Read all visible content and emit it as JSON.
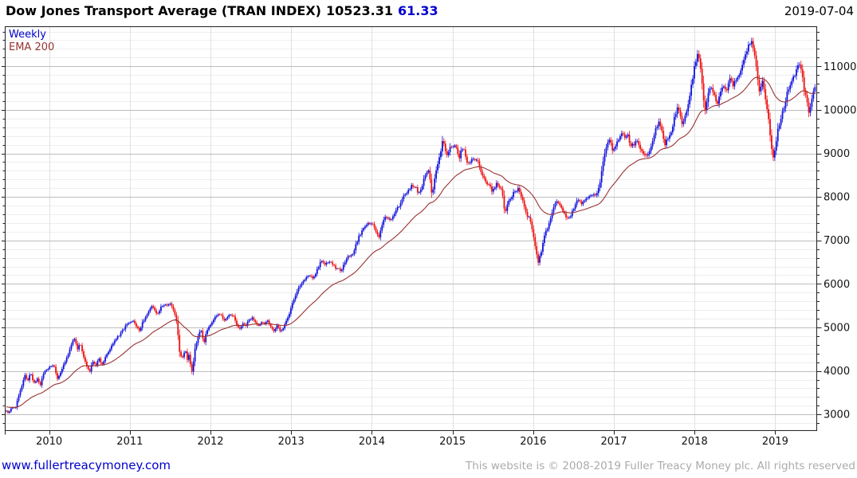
{
  "header": {
    "title": "Dow Jones Transport Average (TRAN INDEX)",
    "last_price": "10523.31",
    "change": "61.33",
    "date": "2019-07-04"
  },
  "legend": {
    "frequency": "Weekly",
    "overlay": "EMA 200"
  },
  "footer": {
    "website": "www.fullertreacymoney.com",
    "copyright": "This website is © 2008-2019 Fuller Treacy Money plc. All rights reserved"
  },
  "colors": {
    "up": "#1212dd",
    "down": "#ee1111",
    "ema": "#993333",
    "accent_blue": "#0000cc",
    "grid_minor": "#eeeeee",
    "grid_major": "#bdbdbd",
    "grid_vertical": "#e0e0e0",
    "axis": "#222222",
    "tick_label": "#111111"
  },
  "chart_data": {
    "type": "candlestick",
    "title": "Dow Jones Transport Average (TRAN INDEX)",
    "frequency": "Weekly",
    "overlay": "EMA 200",
    "last_close": 10523.31,
    "weekly_change": 61.33,
    "as_of": "2019-07-04",
    "xlim": [
      2009.45,
      2019.52
    ],
    "ylim": [
      2620,
      11920
    ],
    "yticks": [
      3000,
      4000,
      5000,
      6000,
      7000,
      8000,
      9000,
      10000,
      11000
    ],
    "y_minor_step": 200,
    "xticks": [
      2010,
      2011,
      2012,
      2013,
      2014,
      2015,
      2016,
      2017,
      2018,
      2019
    ],
    "ema_period_weeks": 40,
    "anchors": [
      [
        2009.47,
        3080
      ],
      [
        2009.5,
        3030
      ],
      [
        2009.54,
        3180
      ],
      [
        2009.58,
        3120
      ],
      [
        2009.62,
        3420
      ],
      [
        2009.66,
        3650
      ],
      [
        2009.7,
        3920
      ],
      [
        2009.73,
        3750
      ],
      [
        2009.77,
        3980
      ],
      [
        2009.81,
        3700
      ],
      [
        2009.85,
        3820
      ],
      [
        2009.89,
        3660
      ],
      [
        2009.93,
        3950
      ],
      [
        2009.98,
        4050
      ],
      [
        2010.02,
        4120
      ],
      [
        2010.06,
        4150
      ],
      [
        2010.1,
        3820
      ],
      [
        2010.14,
        3950
      ],
      [
        2010.19,
        4180
      ],
      [
        2010.23,
        4350
      ],
      [
        2010.27,
        4600
      ],
      [
        2010.31,
        4750
      ],
      [
        2010.35,
        4500
      ],
      [
        2010.38,
        4650
      ],
      [
        2010.42,
        4380
      ],
      [
        2010.46,
        4150
      ],
      [
        2010.5,
        3980
      ],
      [
        2010.54,
        4220
      ],
      [
        2010.58,
        4120
      ],
      [
        2010.62,
        4300
      ],
      [
        2010.65,
        4100
      ],
      [
        2010.69,
        4280
      ],
      [
        2010.73,
        4420
      ],
      [
        2010.77,
        4560
      ],
      [
        2010.81,
        4700
      ],
      [
        2010.85,
        4780
      ],
      [
        2010.88,
        4850
      ],
      [
        2010.92,
        4950
      ],
      [
        2010.96,
        5080
      ],
      [
        2011.0,
        5100
      ],
      [
        2011.04,
        5170
      ],
      [
        2011.08,
        5020
      ],
      [
        2011.12,
        4920
      ],
      [
        2011.15,
        5080
      ],
      [
        2011.19,
        5230
      ],
      [
        2011.23,
        5330
      ],
      [
        2011.27,
        5480
      ],
      [
        2011.31,
        5400
      ],
      [
        2011.35,
        5300
      ],
      [
        2011.38,
        5480
      ],
      [
        2011.42,
        5530
      ],
      [
        2011.46,
        5480
      ],
      [
        2011.5,
        5560
      ],
      [
        2011.54,
        5380
      ],
      [
        2011.58,
        5150
      ],
      [
        2011.6,
        4800
      ],
      [
        2011.62,
        4380
      ],
      [
        2011.65,
        4300
      ],
      [
        2011.69,
        4480
      ],
      [
        2011.71,
        4250
      ],
      [
        2011.73,
        4380
      ],
      [
        2011.75,
        4180
      ],
      [
        2011.77,
        4000
      ],
      [
        2011.79,
        4250
      ],
      [
        2011.81,
        4550
      ],
      [
        2011.85,
        4800
      ],
      [
        2011.88,
        4950
      ],
      [
        2011.9,
        4780
      ],
      [
        2011.92,
        4650
      ],
      [
        2011.94,
        4850
      ],
      [
        2011.96,
        4920
      ],
      [
        2011.98,
        5020
      ],
      [
        2012.02,
        5120
      ],
      [
        2012.06,
        5250
      ],
      [
        2012.1,
        5320
      ],
      [
        2012.13,
        5280
      ],
      [
        2012.17,
        5180
      ],
      [
        2012.21,
        5240
      ],
      [
        2012.25,
        5300
      ],
      [
        2012.29,
        5230
      ],
      [
        2012.33,
        5060
      ],
      [
        2012.37,
        4960
      ],
      [
        2012.4,
        5120
      ],
      [
        2012.44,
        5040
      ],
      [
        2012.48,
        5180
      ],
      [
        2012.52,
        5240
      ],
      [
        2012.56,
        5120
      ],
      [
        2012.6,
        5040
      ],
      [
        2012.63,
        5120
      ],
      [
        2012.67,
        5080
      ],
      [
        2012.71,
        5150
      ],
      [
        2012.75,
        5020
      ],
      [
        2012.79,
        4900
      ],
      [
        2012.83,
        5050
      ],
      [
        2012.87,
        4880
      ],
      [
        2012.9,
        5000
      ],
      [
        2012.94,
        5150
      ],
      [
        2012.98,
        5330
      ],
      [
        2013.02,
        5600
      ],
      [
        2013.06,
        5750
      ],
      [
        2013.1,
        5950
      ],
      [
        2013.15,
        6050
      ],
      [
        2013.19,
        6150
      ],
      [
        2013.23,
        6180
      ],
      [
        2013.27,
        6120
      ],
      [
        2013.31,
        6280
      ],
      [
        2013.35,
        6450
      ],
      [
        2013.38,
        6550
      ],
      [
        2013.42,
        6420
      ],
      [
        2013.46,
        6520
      ],
      [
        2013.5,
        6480
      ],
      [
        2013.54,
        6380
      ],
      [
        2013.58,
        6350
      ],
      [
        2013.62,
        6280
      ],
      [
        2013.65,
        6450
      ],
      [
        2013.69,
        6600
      ],
      [
        2013.73,
        6650
      ],
      [
        2013.77,
        6720
      ],
      [
        2013.81,
        6950
      ],
      [
        2013.85,
        7120
      ],
      [
        2013.88,
        7250
      ],
      [
        2013.92,
        7320
      ],
      [
        2013.96,
        7400
      ],
      [
        2014.0,
        7380
      ],
      [
        2014.04,
        7280
      ],
      [
        2014.08,
        7050
      ],
      [
        2014.12,
        7300
      ],
      [
        2014.15,
        7480
      ],
      [
        2014.19,
        7550
      ],
      [
        2014.23,
        7480
      ],
      [
        2014.27,
        7620
      ],
      [
        2014.31,
        7700
      ],
      [
        2014.35,
        7850
      ],
      [
        2014.38,
        7980
      ],
      [
        2014.42,
        8050
      ],
      [
        2014.46,
        8150
      ],
      [
        2014.5,
        8280
      ],
      [
        2014.54,
        8230
      ],
      [
        2014.58,
        8080
      ],
      [
        2014.62,
        8250
      ],
      [
        2014.65,
        8450
      ],
      [
        2014.69,
        8620
      ],
      [
        2014.71,
        8550
      ],
      [
        2014.73,
        8250
      ],
      [
        2014.75,
        7980
      ],
      [
        2014.77,
        8350
      ],
      [
        2014.81,
        8700
      ],
      [
        2014.85,
        9050
      ],
      [
        2014.88,
        9280
      ],
      [
        2014.9,
        9250
      ],
      [
        2014.92,
        8950
      ],
      [
        2014.96,
        9100
      ],
      [
        2015.0,
        9180
      ],
      [
        2015.04,
        9150
      ],
      [
        2015.08,
        8880
      ],
      [
        2015.12,
        9120
      ],
      [
        2015.15,
        9050
      ],
      [
        2015.19,
        8750
      ],
      [
        2015.23,
        8820
      ],
      [
        2015.27,
        8880
      ],
      [
        2015.31,
        8820
      ],
      [
        2015.35,
        8550
      ],
      [
        2015.38,
        8480
      ],
      [
        2015.42,
        8350
      ],
      [
        2015.46,
        8220
      ],
      [
        2015.5,
        8120
      ],
      [
        2015.54,
        8320
      ],
      [
        2015.58,
        8250
      ],
      [
        2015.62,
        8080
      ],
      [
        2015.65,
        7620
      ],
      [
        2015.69,
        7850
      ],
      [
        2015.73,
        8000
      ],
      [
        2015.77,
        8150
      ],
      [
        2015.81,
        8180
      ],
      [
        2015.85,
        8050
      ],
      [
        2015.88,
        7850
      ],
      [
        2015.92,
        7580
      ],
      [
        2015.96,
        7480
      ],
      [
        2016.0,
        7100
      ],
      [
        2016.04,
        6700
      ],
      [
        2016.06,
        6480
      ],
      [
        2016.1,
        6750
      ],
      [
        2016.13,
        7050
      ],
      [
        2016.17,
        7250
      ],
      [
        2016.21,
        7480
      ],
      [
        2016.25,
        7750
      ],
      [
        2016.29,
        7880
      ],
      [
        2016.33,
        7780
      ],
      [
        2016.37,
        7650
      ],
      [
        2016.4,
        7580
      ],
      [
        2016.44,
        7480
      ],
      [
        2016.48,
        7650
      ],
      [
        2016.52,
        7820
      ],
      [
        2016.56,
        7950
      ],
      [
        2016.6,
        7850
      ],
      [
        2016.63,
        7880
      ],
      [
        2016.67,
        7950
      ],
      [
        2016.71,
        8020
      ],
      [
        2016.75,
        8100
      ],
      [
        2016.79,
        8050
      ],
      [
        2016.83,
        8350
      ],
      [
        2016.87,
        8850
      ],
      [
        2016.9,
        9150
      ],
      [
        2016.94,
        9350
      ],
      [
        2016.98,
        9100
      ],
      [
        2017.02,
        9180
      ],
      [
        2017.06,
        9300
      ],
      [
        2017.1,
        9450
      ],
      [
        2017.13,
        9380
      ],
      [
        2017.17,
        9420
      ],
      [
        2017.21,
        9150
      ],
      [
        2017.25,
        9220
      ],
      [
        2017.29,
        9300
      ],
      [
        2017.33,
        9120
      ],
      [
        2017.37,
        8980
      ],
      [
        2017.4,
        8900
      ],
      [
        2017.44,
        9050
      ],
      [
        2017.48,
        9250
      ],
      [
        2017.52,
        9550
      ],
      [
        2017.56,
        9720
      ],
      [
        2017.6,
        9450
      ],
      [
        2017.63,
        9200
      ],
      [
        2017.67,
        9350
      ],
      [
        2017.71,
        9520
      ],
      [
        2017.75,
        9800
      ],
      [
        2017.79,
        10050
      ],
      [
        2017.83,
        9850
      ],
      [
        2017.85,
        9580
      ],
      [
        2017.88,
        9850
      ],
      [
        2017.92,
        10120
      ],
      [
        2017.96,
        10550
      ],
      [
        2018.0,
        11000
      ],
      [
        2018.04,
        11350
      ],
      [
        2018.07,
        11050
      ],
      [
        2018.1,
        10450
      ],
      [
        2018.13,
        9950
      ],
      [
        2018.17,
        10350
      ],
      [
        2018.21,
        10550
      ],
      [
        2018.25,
        10300
      ],
      [
        2018.28,
        10120
      ],
      [
        2018.32,
        10380
      ],
      [
        2018.36,
        10550
      ],
      [
        2018.4,
        10420
      ],
      [
        2018.44,
        10750
      ],
      [
        2018.48,
        10580
      ],
      [
        2018.52,
        10650
      ],
      [
        2018.56,
        10880
      ],
      [
        2018.6,
        11080
      ],
      [
        2018.63,
        11250
      ],
      [
        2018.67,
        11450
      ],
      [
        2018.7,
        11570
      ],
      [
        2018.73,
        11420
      ],
      [
        2018.76,
        11120
      ],
      [
        2018.79,
        10650
      ],
      [
        2018.81,
        10380
      ],
      [
        2018.84,
        10700
      ],
      [
        2018.87,
        10380
      ],
      [
        2018.9,
        10050
      ],
      [
        2018.93,
        9550
      ],
      [
        2018.96,
        9080
      ],
      [
        2018.98,
        8820
      ],
      [
        2019.01,
        9250
      ],
      [
        2019.04,
        9600
      ],
      [
        2019.08,
        9900
      ],
      [
        2019.12,
        10150
      ],
      [
        2019.15,
        10380
      ],
      [
        2019.19,
        10550
      ],
      [
        2019.23,
        10750
      ],
      [
        2019.27,
        10950
      ],
      [
        2019.3,
        11020
      ],
      [
        2019.33,
        10820
      ],
      [
        2019.36,
        10480
      ],
      [
        2019.4,
        10120
      ],
      [
        2019.42,
        9850
      ],
      [
        2019.44,
        10080
      ],
      [
        2019.46,
        10280
      ],
      [
        2019.48,
        10450
      ],
      [
        2019.505,
        10523.31
      ]
    ]
  }
}
